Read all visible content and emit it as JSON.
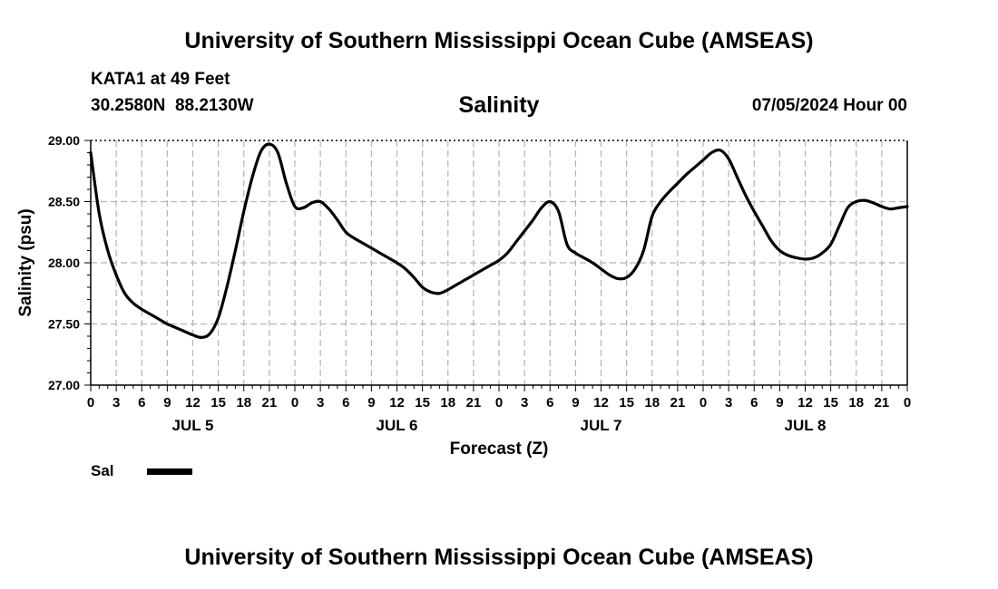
{
  "page": {
    "title_top": "University of Southern Mississippi Ocean Cube (AMSEAS)",
    "title_bottom": "University of Southern Mississippi Ocean Cube (AMSEAS)",
    "station": "KATA1 at 49 Feet",
    "coords": "30.2580N  88.2130W",
    "datetime": "07/05/2024 Hour 00"
  },
  "legend": {
    "label": "Sal",
    "color": "#000000"
  },
  "chart_data": {
    "type": "line",
    "title": "Salinity",
    "xlabel": "Forecast (Z)",
    "ylabel": "Salinity (psu)",
    "ylim": [
      27.0,
      29.0
    ],
    "yticks": [
      "27.00",
      "27.50",
      "28.00",
      "28.50",
      "29.00"
    ],
    "xlim_hours": [
      0,
      96
    ],
    "xtick_step_hours": 3,
    "xtick_labels": [
      "0",
      "3",
      "6",
      "9",
      "12",
      "15",
      "18",
      "21",
      "0",
      "3",
      "6",
      "9",
      "12",
      "15",
      "18",
      "21",
      "0",
      "3",
      "6",
      "9",
      "12",
      "15",
      "18",
      "21",
      "0",
      "3",
      "6",
      "9",
      "12",
      "15",
      "18",
      "21",
      "0"
    ],
    "day_labels": [
      {
        "label": "JUL 5",
        "hour": 12
      },
      {
        "label": "JUL 6",
        "hour": 36
      },
      {
        "label": "JUL 7",
        "hour": 60
      },
      {
        "label": "JUL 8",
        "hour": 84
      }
    ],
    "grid": true,
    "series": [
      {
        "name": "Sal",
        "x": [
          0,
          1,
          2,
          3,
          4,
          5,
          6,
          7,
          8,
          9,
          10,
          11,
          12,
          13,
          14,
          15,
          16,
          17,
          18,
          19,
          20,
          21,
          22,
          23,
          24,
          25,
          26,
          27,
          28,
          29,
          30,
          31,
          32,
          33,
          34,
          35,
          36,
          37,
          38,
          39,
          40,
          41,
          42,
          43,
          44,
          45,
          46,
          47,
          48,
          49,
          50,
          51,
          52,
          53,
          54,
          55,
          56,
          57,
          58,
          59,
          60,
          61,
          62,
          63,
          64,
          65,
          66,
          67,
          68,
          69,
          70,
          71,
          72,
          73,
          74,
          75,
          76,
          77,
          78,
          79,
          80,
          81,
          82,
          83,
          84,
          85,
          86,
          87,
          88,
          89,
          90,
          91,
          92,
          93,
          94,
          95,
          96
        ],
        "values": [
          28.9,
          28.4,
          28.1,
          27.9,
          27.75,
          27.67,
          27.62,
          27.58,
          27.54,
          27.5,
          27.47,
          27.44,
          27.41,
          27.39,
          27.42,
          27.55,
          27.8,
          28.1,
          28.42,
          28.7,
          28.91,
          28.97,
          28.9,
          28.65,
          28.46,
          28.45,
          28.49,
          28.5,
          28.44,
          28.35,
          28.25,
          28.2,
          28.16,
          28.12,
          28.08,
          28.04,
          28.0,
          27.95,
          27.88,
          27.8,
          27.76,
          27.75,
          27.78,
          27.82,
          27.86,
          27.9,
          27.94,
          27.98,
          28.02,
          28.08,
          28.17,
          28.26,
          28.35,
          28.45,
          28.5,
          28.42,
          28.15,
          28.08,
          28.04,
          28.0,
          27.95,
          27.9,
          27.87,
          27.88,
          27.95,
          28.1,
          28.38,
          28.5,
          28.58,
          28.65,
          28.72,
          28.78,
          28.84,
          28.9,
          28.92,
          28.85,
          28.7,
          28.55,
          28.42,
          28.3,
          28.18,
          28.1,
          28.06,
          28.04,
          28.03,
          28.04,
          28.08,
          28.15,
          28.3,
          28.45,
          28.5,
          28.51,
          28.49,
          28.46,
          28.44,
          28.45,
          28.46
        ]
      }
    ]
  }
}
